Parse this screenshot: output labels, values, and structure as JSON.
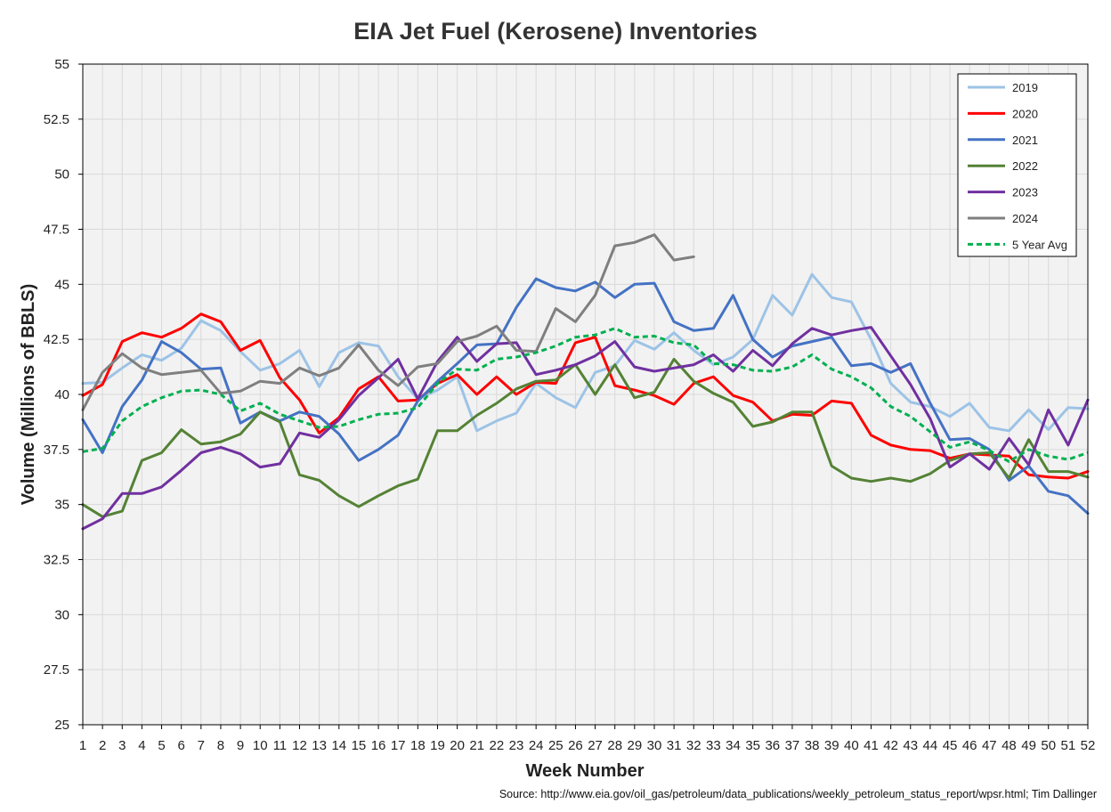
{
  "chart_data": {
    "type": "line",
    "title": "EIA Jet Fuel (Kerosene) Inventories",
    "xlabel": "Week Number",
    "ylabel": "Volume (Millions of BBLS)",
    "source": "Source: http://www.eia.gov/oil_gas/petroleum/data_publications/weekly_petroleum_status_report/wpsr.html; Tim Dallinger",
    "xlim": [
      1,
      52
    ],
    "ylim": [
      25,
      55
    ],
    "yticks": [
      "25",
      "27.5",
      "30",
      "32.5",
      "35",
      "37.5",
      "40",
      "42.5",
      "45",
      "47.5",
      "50",
      "52.5",
      "55"
    ],
    "ytick_values": [
      25,
      27.5,
      30,
      32.5,
      35,
      37.5,
      40,
      42.5,
      45,
      47.5,
      50,
      52.5,
      55
    ],
    "x": [
      1,
      2,
      3,
      4,
      5,
      6,
      7,
      8,
      9,
      10,
      11,
      12,
      13,
      14,
      15,
      16,
      17,
      18,
      19,
      20,
      21,
      22,
      23,
      24,
      25,
      26,
      27,
      28,
      29,
      30,
      31,
      32,
      33,
      34,
      35,
      36,
      37,
      38,
      39,
      40,
      41,
      42,
      43,
      44,
      45,
      46,
      47,
      48,
      49,
      50,
      51,
      52
    ],
    "xticks": [
      "1",
      "2",
      "3",
      "4",
      "5",
      "6",
      "7",
      "8",
      "9",
      "10",
      "11",
      "12",
      "13",
      "14",
      "15",
      "16",
      "17",
      "18",
      "19",
      "20",
      "21",
      "22",
      "23",
      "24",
      "25",
      "26",
      "27",
      "28",
      "29",
      "30",
      "31",
      "32",
      "33",
      "34",
      "35",
      "36",
      "37",
      "38",
      "39",
      "40",
      "41",
      "42",
      "43",
      "44",
      "45",
      "46",
      "47",
      "48",
      "49",
      "50",
      "51",
      "52"
    ],
    "grid": true,
    "legend_position": "top-right",
    "series": [
      {
        "name": "2019",
        "color": "#9dc3e6",
        "dash": false,
        "values": [
          40.5,
          40.55,
          41.2,
          41.8,
          41.55,
          42.1,
          43.35,
          42.9,
          41.95,
          41.1,
          41.4,
          42.0,
          40.35,
          41.9,
          42.35,
          42.2,
          40.8,
          39.8,
          40.2,
          40.8,
          38.35,
          38.8,
          39.15,
          40.5,
          39.85,
          39.4,
          41.0,
          41.3,
          42.45,
          42.05,
          42.8,
          42.0,
          41.35,
          41.7,
          42.5,
          44.5,
          43.6,
          45.45,
          44.4,
          44.2,
          42.5,
          40.5,
          39.65,
          39.45,
          39.0,
          39.6,
          38.5,
          38.35,
          39.3,
          38.4,
          39.4,
          39.35
        ]
      },
      {
        "name": "2020",
        "color": "#ff0000",
        "dash": false,
        "values": [
          39.95,
          40.45,
          42.4,
          42.8,
          42.6,
          43.0,
          43.65,
          43.3,
          42.0,
          42.45,
          40.75,
          39.75,
          38.25,
          38.95,
          40.25,
          40.8,
          39.7,
          39.75,
          40.5,
          40.9,
          40.0,
          40.8,
          40.0,
          40.55,
          40.5,
          42.35,
          42.6,
          40.4,
          40.2,
          39.95,
          39.55,
          40.5,
          40.8,
          39.95,
          39.65,
          38.8,
          39.1,
          39.05,
          39.7,
          39.6,
          38.15,
          37.7,
          37.5,
          37.45,
          37.1,
          37.3,
          37.25,
          37.2,
          36.35,
          36.25,
          36.2,
          36.5
        ]
      },
      {
        "name": "2021",
        "color": "#4472c4",
        "dash": false,
        "values": [
          38.85,
          37.35,
          39.45,
          40.65,
          42.4,
          41.9,
          41.15,
          41.2,
          38.7,
          39.2,
          38.8,
          39.2,
          39.0,
          38.2,
          37.0,
          37.5,
          38.15,
          39.7,
          40.6,
          41.4,
          42.25,
          42.3,
          43.95,
          45.25,
          44.85,
          44.7,
          45.1,
          44.4,
          45.0,
          45.05,
          43.3,
          42.9,
          43.0,
          44.5,
          42.5,
          41.7,
          42.2,
          42.4,
          42.6,
          41.3,
          41.4,
          41.0,
          41.4,
          39.6,
          37.95,
          38.0,
          37.5,
          36.1,
          36.75,
          35.6,
          35.4,
          34.6
        ]
      },
      {
        "name": "2022",
        "color": "#548235",
        "dash": false,
        "values": [
          35.0,
          34.45,
          34.7,
          37.0,
          37.35,
          38.4,
          37.75,
          37.85,
          38.2,
          39.2,
          38.75,
          36.35,
          36.1,
          35.4,
          34.9,
          35.4,
          35.85,
          36.15,
          38.35,
          38.35,
          39.05,
          39.6,
          40.25,
          40.6,
          40.65,
          41.35,
          40.0,
          41.35,
          39.85,
          40.1,
          41.6,
          40.6,
          40.05,
          39.65,
          38.55,
          38.75,
          39.2,
          39.2,
          36.75,
          36.2,
          36.05,
          36.2,
          36.05,
          36.4,
          37.0,
          37.3,
          37.35,
          36.2,
          37.95,
          36.5,
          36.5,
          36.25
        ]
      },
      {
        "name": "2023",
        "color": "#7030a0",
        "dash": false,
        "values": [
          33.9,
          34.35,
          35.5,
          35.5,
          35.8,
          36.55,
          37.35,
          37.6,
          37.3,
          36.7,
          36.85,
          38.25,
          38.05,
          38.85,
          39.95,
          40.75,
          41.6,
          39.8,
          41.5,
          42.6,
          41.5,
          42.3,
          42.35,
          40.9,
          41.1,
          41.35,
          41.75,
          42.4,
          41.25,
          41.05,
          41.2,
          41.35,
          41.8,
          41.05,
          42.0,
          41.3,
          42.3,
          43.0,
          42.7,
          42.9,
          43.05,
          41.75,
          40.45,
          38.9,
          36.7,
          37.3,
          36.6,
          38.0,
          36.8,
          39.3,
          37.7,
          39.75
        ]
      },
      {
        "name": "2024",
        "color": "#7f7f7f",
        "dash": false,
        "values": [
          39.3,
          41.0,
          41.85,
          41.2,
          40.9,
          41.0,
          41.1,
          40.05,
          40.15,
          40.6,
          40.5,
          41.2,
          40.85,
          41.2,
          42.25,
          41.1,
          40.4,
          41.25,
          41.4,
          42.4,
          42.65,
          43.1,
          42.0,
          41.95,
          43.9,
          43.3,
          44.5,
          46.75,
          46.9,
          47.25,
          46.1,
          46.25,
          null,
          null,
          null,
          null,
          null,
          null,
          null,
          null,
          null,
          null,
          null,
          null,
          null,
          null,
          null,
          null,
          null,
          null,
          null,
          null
        ]
      },
      {
        "name": "5 Year Avg",
        "color": "#00b050",
        "dash": true,
        "values": [
          37.4,
          37.55,
          38.8,
          39.45,
          39.85,
          40.15,
          40.2,
          40.0,
          39.25,
          39.6,
          39.1,
          38.8,
          38.5,
          38.55,
          38.85,
          39.1,
          39.15,
          39.4,
          40.5,
          41.15,
          41.1,
          41.6,
          41.7,
          41.9,
          42.2,
          42.6,
          42.7,
          43.0,
          42.6,
          42.65,
          42.35,
          42.25,
          41.4,
          41.35,
          41.1,
          41.05,
          41.25,
          41.8,
          41.15,
          40.8,
          40.3,
          39.45,
          39.0,
          38.3,
          37.6,
          37.85,
          37.45,
          36.95,
          37.5,
          37.2,
          37.05,
          37.35
        ]
      }
    ]
  }
}
